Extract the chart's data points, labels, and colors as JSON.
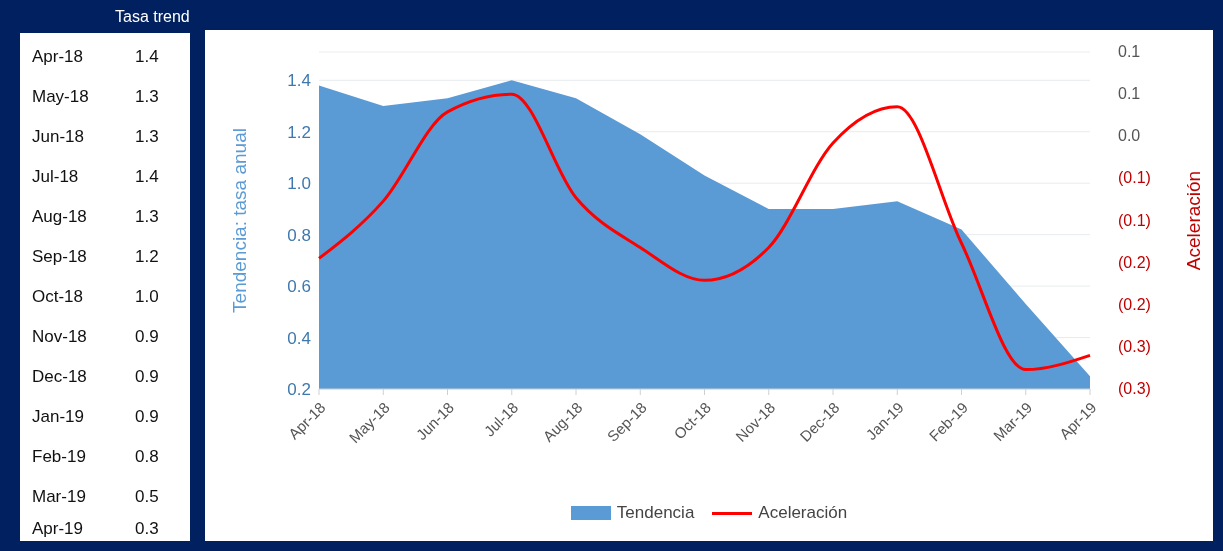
{
  "chart_data": [
    {
      "type": "other",
      "title": "Tasa trend",
      "categories": [
        "Apr-18",
        "May-18",
        "Jun-18",
        "Jul-18",
        "Aug-18",
        "Sep-18",
        "Oct-18",
        "Nov-18",
        "Dec-18",
        "Jan-19",
        "Feb-19",
        "Mar-19",
        "Apr-19"
      ],
      "value_labels": [
        "1.4",
        "1.3",
        "1.3",
        "1.4",
        "1.3",
        "1.2",
        "1.0",
        "0.9",
        "0.9",
        "0.9",
        "0.8",
        "0.5",
        "0.3"
      ]
    },
    {
      "type": "area",
      "categories": [
        "Apr-18",
        "May-18",
        "Jun-18",
        "Jul-18",
        "Aug-18",
        "Sep-18",
        "Oct-18",
        "Nov-18",
        "Dec-18",
        "Jan-19",
        "Feb-19",
        "Mar-19",
        "Apr-19"
      ],
      "ylabel": "Tendencia: tasa anual",
      "y2label": "Aceleración",
      "ylim": [
        0.2,
        1.51
      ],
      "yticks": [
        0.2,
        0.4,
        0.6,
        0.8,
        {
          "value": 1,
          "label": "1.0"
        },
        1.2,
        1.4
      ],
      "y2lim": [
        -0.3,
        0.1
      ],
      "y2ticks": [
        {
          "value": 0.1,
          "label": "0.1"
        },
        {
          "value": 0.05,
          "label": "0.1"
        },
        {
          "value": 0,
          "label": "0.0"
        },
        {
          "value": -0.05,
          "label": "(0.1)"
        },
        {
          "value": -0.1,
          "label": "(0.1)"
        },
        {
          "value": -0.15,
          "label": "(0.2)"
        },
        {
          "value": -0.2,
          "label": "(0.2)"
        },
        {
          "value": -0.25,
          "label": "(0.3)"
        },
        {
          "value": -0.3,
          "label": "(0.3)"
        }
      ],
      "grid": "y",
      "legend": "bottom",
      "series": [
        {
          "name": "Tendencia",
          "color": "#5b9bd5",
          "values": [
            1.38,
            1.3,
            1.33,
            1.4,
            1.33,
            1.19,
            1.03,
            0.9,
            0.9,
            0.93,
            0.82,
            0.53,
            0.25
          ]
        },
        {
          "name": "Aceleración",
          "type": "line",
          "axis": "y2",
          "color": "#ff0000",
          "values": [
            -0.145,
            -0.077,
            0.029,
            0.05,
            -0.073,
            -0.132,
            -0.171,
            -0.132,
            -0.008,
            0.035,
            -0.127,
            -0.277,
            -0.26
          ]
        }
      ]
    }
  ]
}
